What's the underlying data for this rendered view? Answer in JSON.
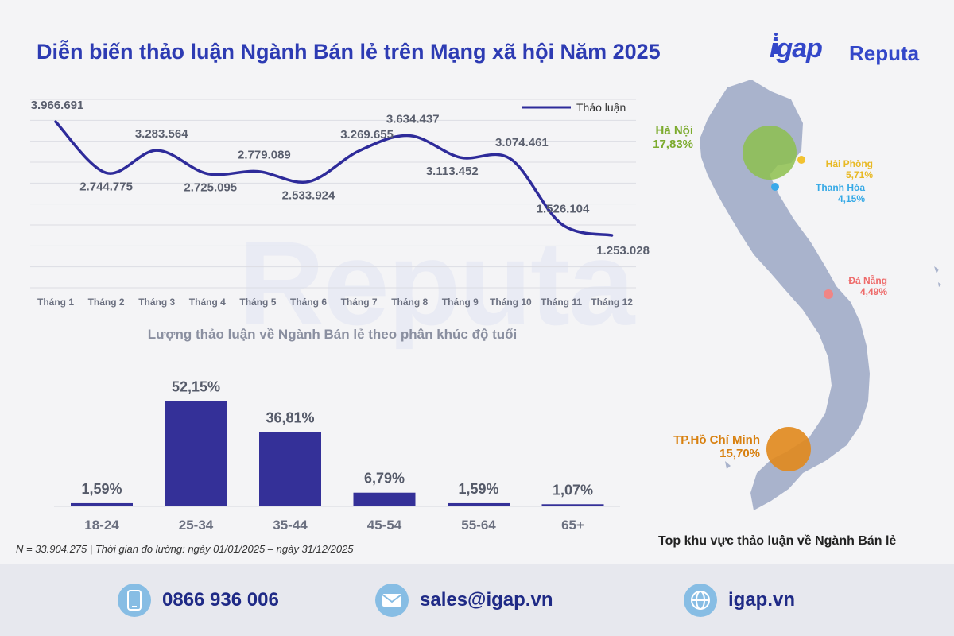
{
  "header": {
    "title": "Diễn biến thảo luận Ngành Bán lẻ trên Mạng xã hội Năm 2025",
    "logo_igap": "igap",
    "logo_reputa": "Reputa",
    "watermark": "Reputa"
  },
  "chart_data": [
    {
      "type": "line",
      "title": "Diễn biến thảo luận Ngành Bán lẻ trên Mạng xã hội Năm 2025",
      "categories": [
        "Tháng 1",
        "Tháng 2",
        "Tháng 3",
        "Tháng 4",
        "Tháng 5",
        "Tháng 6",
        "Tháng 7",
        "Tháng 8",
        "Tháng 9",
        "Tháng 10",
        "Tháng 11",
        "Tháng 12"
      ],
      "series": [
        {
          "name": "Thảo luận",
          "color": "#2e2b9a",
          "values": [
            3966691,
            2744775,
            3283564,
            2725095,
            2779089,
            2533924,
            3269655,
            3634437,
            3113452,
            3074461,
            1526104,
            1253028
          ],
          "labels": [
            "3.966.691",
            "2.744.775",
            "3.283.564",
            "2.725.095",
            "2.779.089",
            "2.533.924",
            "3.269.655",
            "3.634.437",
            "3.113.452",
            "3.074.461",
            "1.526.104",
            "1.253.028"
          ]
        }
      ],
      "ylim": [
        0,
        4500000
      ],
      "grid": true,
      "legend": "top-right"
    },
    {
      "type": "bar",
      "title": "Lượng thảo luận về Ngành Bán lẻ theo phân khúc độ tuổi",
      "categories": [
        "18-24",
        "25-34",
        "35-44",
        "45-54",
        "55-64",
        "65+"
      ],
      "values": [
        1.59,
        52.15,
        36.81,
        6.79,
        1.59,
        1.07
      ],
      "labels": [
        "1,59%",
        "52,15%",
        "36,81%",
        "6,79%",
        "1,59%",
        "1,07%"
      ],
      "color": "#343098",
      "ylim": [
        0,
        55
      ]
    }
  ],
  "notes": {
    "footnote": "N = 33.904.275 | Thời gian đo lường: ngày 01/01/2025 – ngày 31/12/2025"
  },
  "map": {
    "caption": "Top khu vực thảo luận về Ngành Bán lẻ",
    "regions": [
      {
        "name": "Hà Nội",
        "value": "17,83%",
        "color": "#7cab2e"
      },
      {
        "name": "Hải Phòng",
        "value": "5,71%",
        "color": "#e8b925"
      },
      {
        "name": "Thanh Hóa",
        "value": "4,15%",
        "color": "#35a9e6"
      },
      {
        "name": "Đà Nẵng",
        "value": "4,49%",
        "color": "#ee6a6a"
      },
      {
        "name": "TP.Hồ Chí Minh",
        "value": "15,70%",
        "color": "#d8800f"
      }
    ]
  },
  "footer": {
    "phone": "0866 936 006",
    "email": "sales@igap.vn",
    "website": "igap.vn"
  },
  "colors": {
    "accent": "#2d3bb3",
    "map_land": "#a9b3cc"
  }
}
